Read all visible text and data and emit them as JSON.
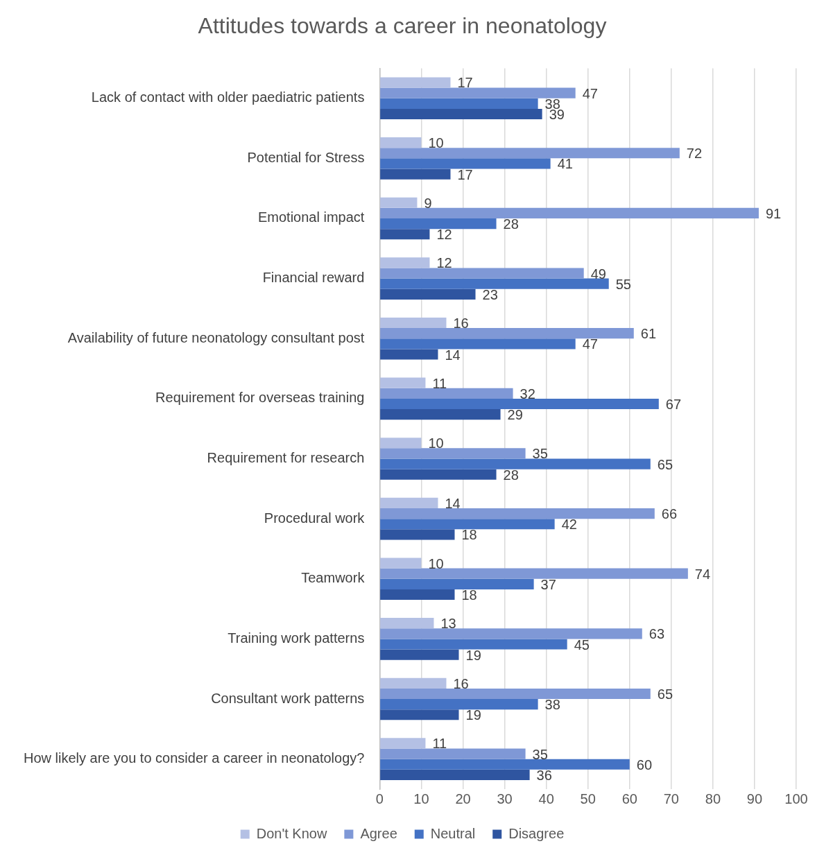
{
  "chart_data": {
    "type": "bar",
    "orientation": "horizontal",
    "title": "Attitudes towards a career in neonatology",
    "categories": [
      "Lack of contact with older paediatric patients",
      "Potential for Stress",
      "Emotional impact",
      "Financial reward",
      "Availability of future neonatology consultant post",
      "Requirement for overseas training",
      "Requirement for research",
      "Procedural work",
      "Teamwork",
      "Training work patterns",
      "Consultant work patterns",
      "How likely are you to consider a career in neonatology?"
    ],
    "series": [
      {
        "name": "Don't Know",
        "color": "#b4c0e4",
        "values": [
          17,
          10,
          9,
          12,
          16,
          11,
          10,
          14,
          10,
          13,
          16,
          11
        ]
      },
      {
        "name": "Agree",
        "color": "#7f98d6",
        "values": [
          47,
          72,
          91,
          49,
          61,
          32,
          35,
          66,
          74,
          63,
          65,
          35
        ]
      },
      {
        "name": "Neutral",
        "color": "#4472c4",
        "values": [
          38,
          41,
          28,
          55,
          47,
          67,
          65,
          42,
          37,
          45,
          38,
          60
        ]
      },
      {
        "name": "Disagree",
        "color": "#2f55a0",
        "values": [
          39,
          17,
          12,
          23,
          14,
          29,
          28,
          18,
          18,
          19,
          19,
          36
        ]
      }
    ],
    "xlim": [
      0,
      100
    ],
    "xticks": [
      0,
      10,
      20,
      30,
      40,
      50,
      60,
      70,
      80,
      90,
      100
    ],
    "grid": "x",
    "legend": "bottom",
    "data_labels": true
  }
}
